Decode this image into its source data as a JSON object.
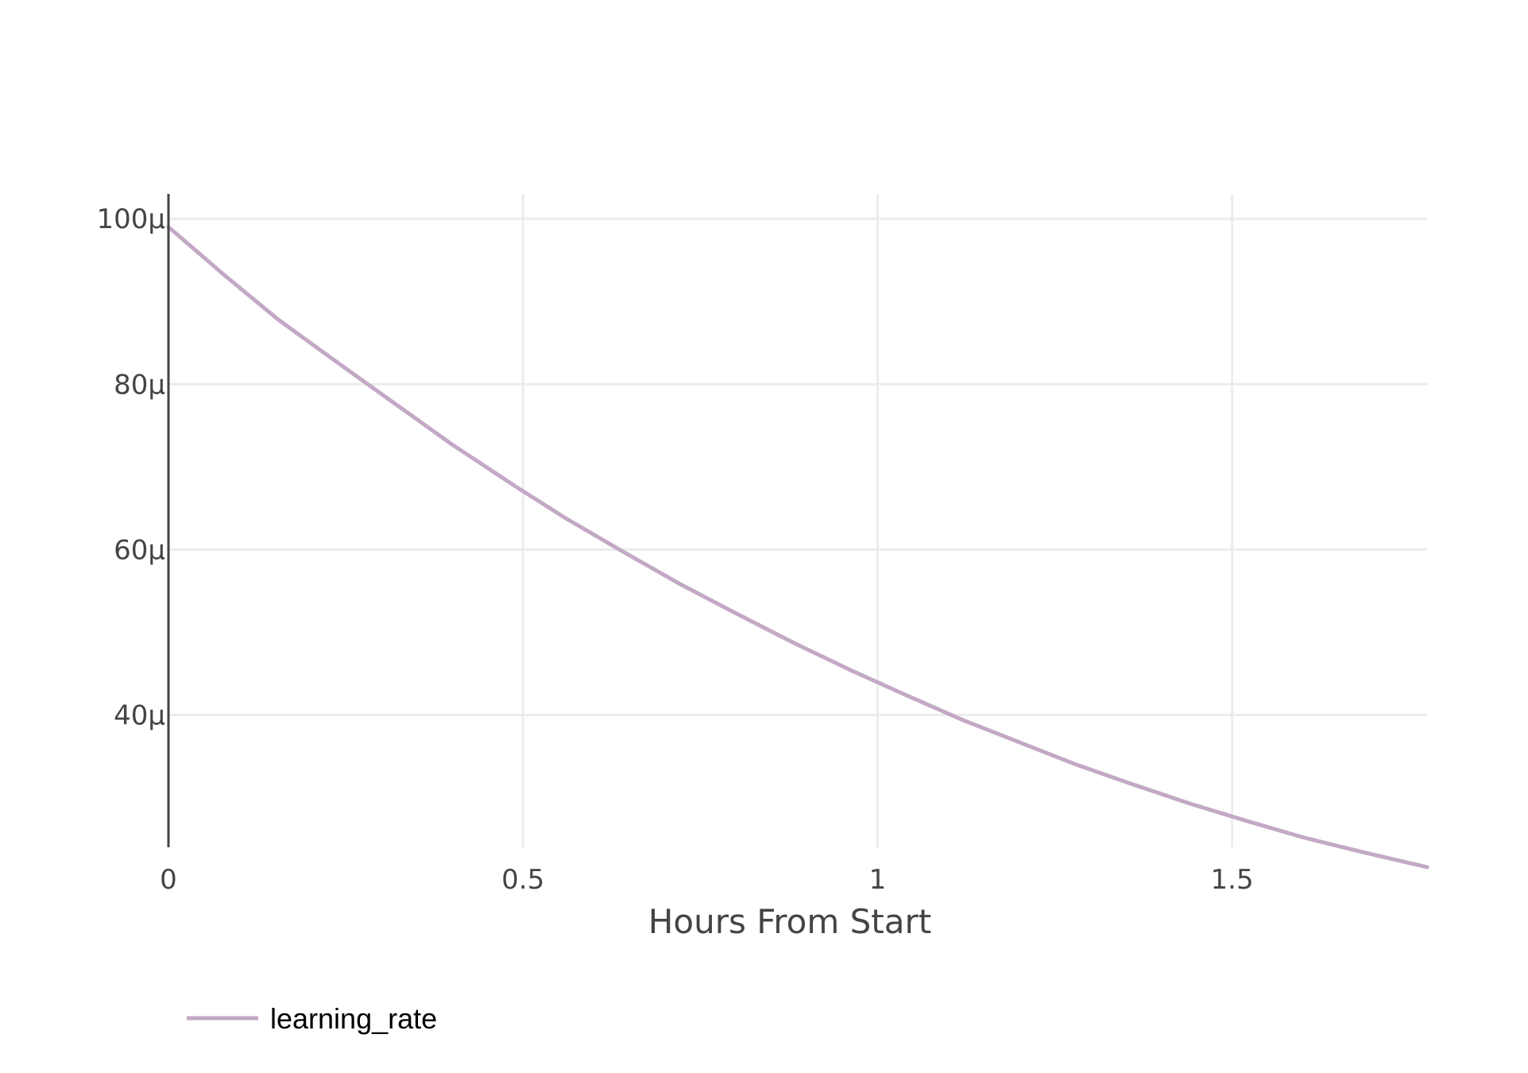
{
  "chart_data": {
    "type": "line",
    "title": "",
    "xlabel": "Hours From Start",
    "ylabel": "",
    "xlim": [
      0,
      1.775
    ],
    "ylim": [
      24,
      103
    ],
    "x_ticks": [
      {
        "value": 0,
        "label": "0"
      },
      {
        "value": 0.5,
        "label": "0.5"
      },
      {
        "value": 1,
        "label": "1"
      },
      {
        "value": 1.5,
        "label": "1.5"
      }
    ],
    "y_ticks": [
      {
        "value": 40,
        "label": "40μ"
      },
      {
        "value": 60,
        "label": "60μ"
      },
      {
        "value": 80,
        "label": "80μ"
      },
      {
        "value": 100,
        "label": "100μ"
      }
    ],
    "y_unit": "μ",
    "grid": true,
    "legend_position": "bottom-left",
    "series": [
      {
        "name": "learning_rate",
        "color": "#c3a9c6",
        "x": [
          0,
          0.08,
          0.155,
          0.245,
          0.32,
          0.4,
          0.49,
          0.56,
          0.64,
          0.72,
          0.8,
          0.88,
          0.96,
          1.04,
          1.12,
          1.2,
          1.28,
          1.36,
          1.44,
          1.52,
          1.6,
          1.68,
          1.775
        ],
        "values": [
          99,
          93.1,
          87.8,
          82.2,
          77.6,
          72.7,
          67.6,
          63.8,
          59.8,
          55.9,
          52.3,
          48.8,
          45.5,
          42.4,
          39.4,
          36.7,
          34.0,
          31.6,
          29.3,
          27.2,
          25.2,
          23.5,
          21.6
        ]
      }
    ]
  }
}
